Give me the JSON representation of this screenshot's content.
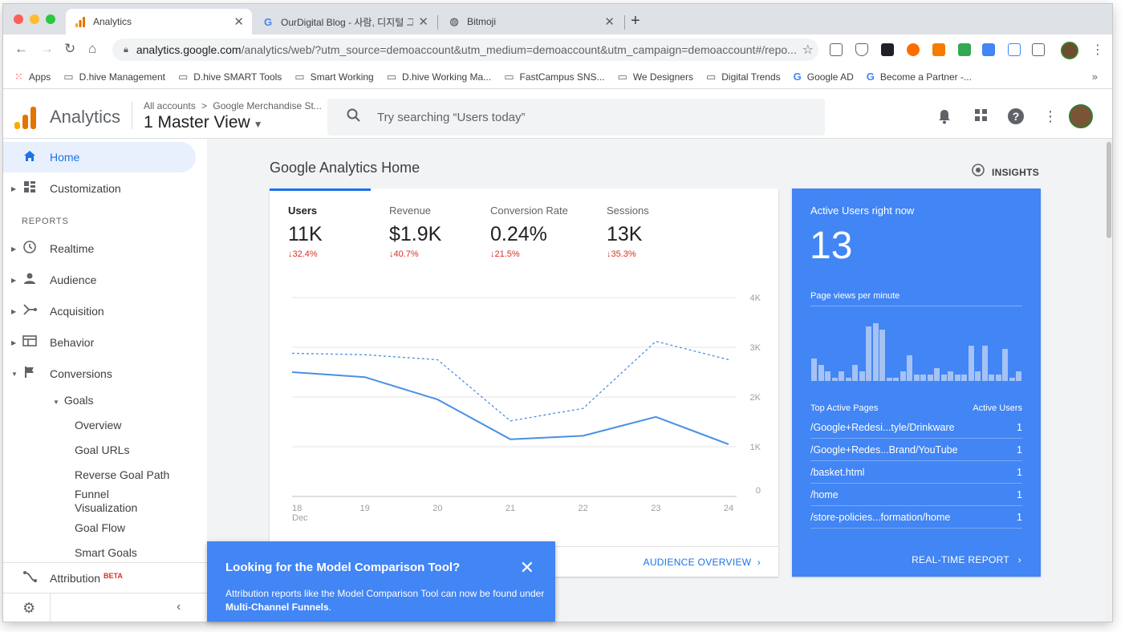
{
  "browser": {
    "tabs": [
      {
        "title": "Analytics",
        "active": true
      },
      {
        "title": "OurDigital Blog - 사람, 디지털 그리"
      },
      {
        "title": "Bitmoji"
      }
    ],
    "url_host": "analytics.google.com",
    "url_rest": "/analytics/web/?utm_source=demoaccount&utm_medium=demoaccount&utm_campaign=demoaccount#/repo...",
    "bookmarks": [
      {
        "label": "Apps",
        "icon": "apps-grid-icon"
      },
      {
        "label": "D.hive Management",
        "icon": "folder-icon"
      },
      {
        "label": "D.hive SMART Tools",
        "icon": "folder-icon"
      },
      {
        "label": "Smart Working",
        "icon": "folder-icon"
      },
      {
        "label": "D.hive Working Ma...",
        "icon": "folder-icon"
      },
      {
        "label": "FastCampus SNS...",
        "icon": "folder-icon"
      },
      {
        "label": "We Designers",
        "icon": "folder-icon"
      },
      {
        "label": "Digital Trends",
        "icon": "folder-icon"
      },
      {
        "label": "Google AD",
        "icon": "google-icon"
      },
      {
        "label": "Become a Partner -...",
        "icon": "google-icon"
      }
    ],
    "bookmarks_more": "»"
  },
  "header": {
    "product": "Analytics",
    "breadcrumb_all": "All accounts",
    "breadcrumb_sep": ">",
    "breadcrumb_account": "Google Merchandise St...",
    "view": "1 Master View",
    "search_placeholder": "Try searching “Users today”"
  },
  "nav": {
    "home": "Home",
    "customization": "Customization",
    "reports_label": "REPORTS",
    "realtime": "Realtime",
    "audience": "Audience",
    "acquisition": "Acquisition",
    "behavior": "Behavior",
    "conversions": "Conversions",
    "goals": "Goals",
    "goal_items": [
      "Overview",
      "Goal URLs",
      "Reverse Goal Path",
      "Funnel Visualization",
      "Goal Flow",
      "Smart Goals"
    ],
    "attribution": "Attribution",
    "beta": "BETA"
  },
  "main": {
    "title": "Google Analytics Home",
    "insights": "INSIGHTS",
    "metrics": [
      {
        "name": "Users",
        "value": "11K",
        "delta": "32.4%"
      },
      {
        "name": "Revenue",
        "value": "$1.9K",
        "delta": "40.7%"
      },
      {
        "name": "Conversion Rate",
        "value": "0.24%",
        "delta": "21.5%"
      },
      {
        "name": "Sessions",
        "value": "13K",
        "delta": "35.3%"
      }
    ],
    "audience_overview": "AUDIENCE OVERVIEW"
  },
  "chart_data": {
    "type": "line",
    "x": [
      "18",
      "19",
      "20",
      "21",
      "22",
      "23",
      "24"
    ],
    "x_sublabel": "Dec",
    "ylim": [
      0,
      4000
    ],
    "y_ticks": [
      "0",
      "1K",
      "2K",
      "3K",
      "4K"
    ],
    "series": [
      {
        "style": "solid",
        "values": [
          2500,
          2400,
          1950,
          1150,
          1220,
          1600,
          1050
        ]
      },
      {
        "style": "dashed",
        "values": [
          2880,
          2850,
          2750,
          1520,
          1770,
          3120,
          2750
        ]
      }
    ]
  },
  "realtime": {
    "title": "Active Users right now",
    "count": "13",
    "pvm_label": "Page views per minute",
    "pvm_values": [
      0.35,
      0.25,
      0.15,
      0.05,
      0.15,
      0.05,
      0.25,
      0.15,
      0.85,
      0.9,
      0.8,
      0.05,
      0.05,
      0.15,
      0.4,
      0.1,
      0.1,
      0.1,
      0.2,
      0.1,
      0.15,
      0.1,
      0.1,
      0.55,
      0.15,
      0.55,
      0.1,
      0.1,
      0.5,
      0.05,
      0.15
    ],
    "col_pages": "Top Active Pages",
    "col_users": "Active Users",
    "rows": [
      {
        "page": "/Google+Redesi...tyle/Drinkware",
        "users": "1"
      },
      {
        "page": "/Google+Redes...Brand/YouTube",
        "users": "1"
      },
      {
        "page": "/basket.html",
        "users": "1"
      },
      {
        "page": "/home",
        "users": "1"
      },
      {
        "page": "/store-policies...formation/home",
        "users": "1"
      }
    ],
    "report_link": "REAL-TIME REPORT"
  },
  "toast": {
    "title": "Looking for the Model Comparison Tool?",
    "body_prefix": "Attribution reports like the Model Comparison Tool can now be found under ",
    "body_link": "Multi-Channel Funnels",
    "body_suffix": "."
  },
  "colors": {
    "accent": "#1a73e8",
    "realtime_bg": "#4285f4",
    "negative": "#d93025",
    "line": "#4a90e2"
  }
}
